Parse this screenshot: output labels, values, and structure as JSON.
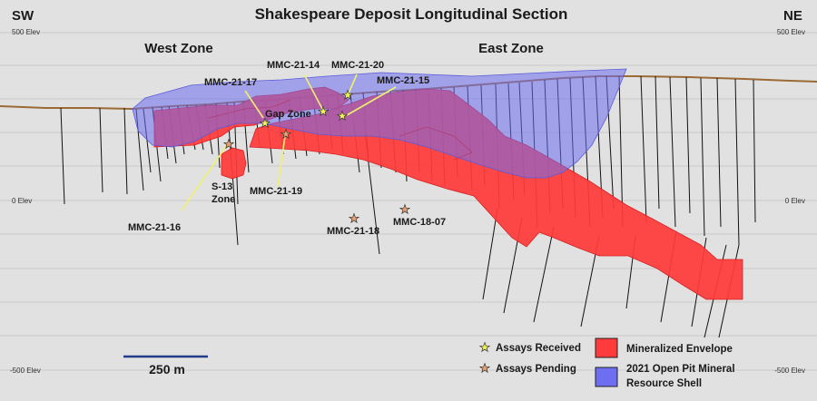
{
  "title": "Shakespeare Deposit Longitudinal Section",
  "corners": {
    "left": "SW",
    "right": "NE"
  },
  "elevations": {
    "top_left": "500 Elev",
    "mid_left": "0 Elev",
    "bottom_left": "-500 Elev",
    "top_right": "500 Elev",
    "mid_right": "0 Elev",
    "bottom_right": "-500 Elev"
  },
  "zones": {
    "west": "West Zone",
    "east": "East Zone",
    "gap": "Gap Zone",
    "s13": [
      "S-13",
      "Zone"
    ]
  },
  "drill_holes": {
    "mmc_21_14": "MMC-21-14",
    "mmc_21_20": "MMC-21-20",
    "mmc_21_17": "MMC-21-17",
    "mmc_21_15": "MMC-21-15",
    "mmc_21_16": "MMC-21-16",
    "mmc_21_19": "MMC-21-19",
    "mmc_21_18": "MMC-21-18",
    "mmc_18_07": "MMC-18-07"
  },
  "scale_bar": "250 m",
  "legend": {
    "assays_received": "Assays Received",
    "assays_pending": "Assays Pending",
    "mineralized_envelope": "Mineralized Envelope",
    "resource_shell": [
      "2021 Open Pit Mineral",
      "Resource Shell"
    ]
  },
  "colors": {
    "background": "#e1e1e1",
    "envelope": "#ff3b3b",
    "shell": "#6e6ef0",
    "star_received": "#f3f35a",
    "star_pending": "#e8a070",
    "callout": "#f0f070",
    "topography": "#9c6a35"
  }
}
